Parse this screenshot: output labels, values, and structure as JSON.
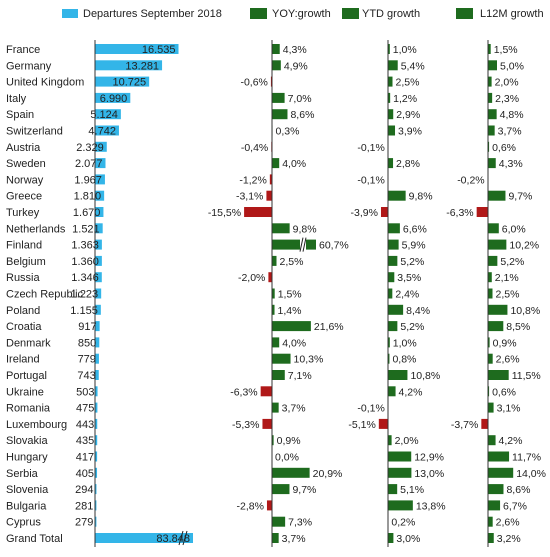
{
  "chart_data": {
    "type": "bar",
    "layout": "table-of-bars",
    "categories": [
      "France",
      "Germany",
      "United Kingdom",
      "Italy",
      "Spain",
      "Switzerland",
      "Austria",
      "Sweden",
      "Norway",
      "Greece",
      "Turkey",
      "Netherlands",
      "Finland",
      "Belgium",
      "Russia",
      "Czech Republic",
      "Poland",
      "Croatia",
      "Denmark",
      "Ireland",
      "Portugal",
      "Ukraine",
      "Romania",
      "Luxembourg",
      "Slovakia",
      "Hungary",
      "Serbia",
      "Slovenia",
      "Bulgaria",
      "Cyprus",
      "Grand Total"
    ],
    "series": [
      {
        "name": "Departures September 2018",
        "color": "#33b5e8",
        "values": [
          16535,
          13281,
          10725,
          6990,
          5124,
          4742,
          2329,
          2077,
          1967,
          1810,
          1670,
          1521,
          1363,
          1360,
          1346,
          1223,
          1155,
          917,
          850,
          779,
          743,
          503,
          475,
          443,
          435,
          417,
          405,
          294,
          281,
          279,
          83848
        ],
        "labels": [
          "16.535",
          "13.281",
          "10.725",
          "6.990",
          "5.124",
          "4.742",
          "2.329",
          "2.077",
          "1.967",
          "1.810",
          "1.670",
          "1.521",
          "1.363",
          "1.360",
          "1.346",
          "1.223",
          "1.155",
          "917",
          "850",
          "779",
          "743",
          "503",
          "475",
          "443",
          "435",
          "417",
          "405",
          "294",
          "281",
          "279",
          "83.848"
        ],
        "broken": [
          "Grand Total"
        ]
      },
      {
        "name": "YOY:growth",
        "color": "#1e6b1e",
        "negative_color": "#b01818",
        "values": [
          4.3,
          4.9,
          -0.6,
          7.0,
          8.6,
          0.3,
          -0.4,
          4.0,
          -1.2,
          -3.1,
          -15.5,
          9.8,
          60.7,
          2.5,
          -2.0,
          1.5,
          1.4,
          21.6,
          4.0,
          10.3,
          7.1,
          -6.3,
          3.7,
          -5.3,
          0.9,
          0.0,
          20.9,
          9.7,
          -2.8,
          7.3,
          3.7
        ],
        "labels": [
          "4,3%",
          "4,9%",
          "-0,6%",
          "7,0%",
          "8,6%",
          "0,3%",
          "-0,4%",
          "4,0%",
          "-1,2%",
          "-3,1%",
          "-15,5%",
          "9,8%",
          "60,7%",
          "2,5%",
          "-2,0%",
          "1,5%",
          "1,4%",
          "21,6%",
          "4,0%",
          "10,3%",
          "7,1%",
          "-6,3%",
          "3,7%",
          "-5,3%",
          "0,9%",
          "0,0%",
          "20,9%",
          "9,7%",
          "-2,8%",
          "7,3%",
          "3,7%"
        ],
        "broken": [
          "Finland"
        ]
      },
      {
        "name": "YTD growth",
        "color": "#1e6b1e",
        "negative_color": "#b01818",
        "values": [
          1.0,
          5.4,
          2.5,
          1.2,
          2.9,
          3.9,
          -0.1,
          2.8,
          -0.1,
          9.8,
          -3.9,
          6.6,
          5.9,
          5.2,
          3.5,
          2.4,
          8.4,
          5.2,
          1.0,
          0.8,
          10.8,
          4.2,
          -0.1,
          -5.1,
          2.0,
          12.9,
          13.0,
          5.1,
          13.8,
          0.2,
          3.0
        ],
        "labels": [
          "1,0%",
          "5,4%",
          "2,5%",
          "1,2%",
          "2,9%",
          "3,9%",
          "-0,1%",
          "2,8%",
          "-0,1%",
          "9,8%",
          "-3,9%",
          "6,6%",
          "5,9%",
          "5,2%",
          "3,5%",
          "2,4%",
          "8,4%",
          "5,2%",
          "1,0%",
          "0,8%",
          "10,8%",
          "4,2%",
          "-0,1%",
          "-5,1%",
          "2,0%",
          "12,9%",
          "13,0%",
          "5,1%",
          "13,8%",
          "0,2%",
          "3,0%"
        ]
      },
      {
        "name": "L12M growth",
        "color": "#1e6b1e",
        "negative_color": "#b01818",
        "values": [
          1.5,
          5.0,
          2.0,
          2.3,
          4.8,
          3.7,
          0.6,
          4.3,
          -0.2,
          9.7,
          -6.3,
          6.0,
          10.2,
          5.2,
          2.1,
          2.5,
          10.8,
          8.5,
          0.9,
          2.6,
          11.5,
          0.6,
          3.1,
          -3.7,
          4.2,
          11.7,
          14.0,
          8.6,
          6.7,
          2.6,
          3.2
        ],
        "labels": [
          "1,5%",
          "5,0%",
          "2,0%",
          "2,3%",
          "4,8%",
          "3,7%",
          "0,6%",
          "4,3%",
          "-0,2%",
          "9,7%",
          "-6,3%",
          "6,0%",
          "10,2%",
          "5,2%",
          "2,1%",
          "2,5%",
          "10,8%",
          "8,5%",
          "0,9%",
          "2,6%",
          "11,5%",
          "0,6%",
          "3,1%",
          "-3,7%",
          "4,2%",
          "11,7%",
          "14,0%",
          "8,6%",
          "6,7%",
          "2,6%",
          "3,2%"
        ]
      }
    ],
    "legend_position": "top",
    "grid": false
  }
}
